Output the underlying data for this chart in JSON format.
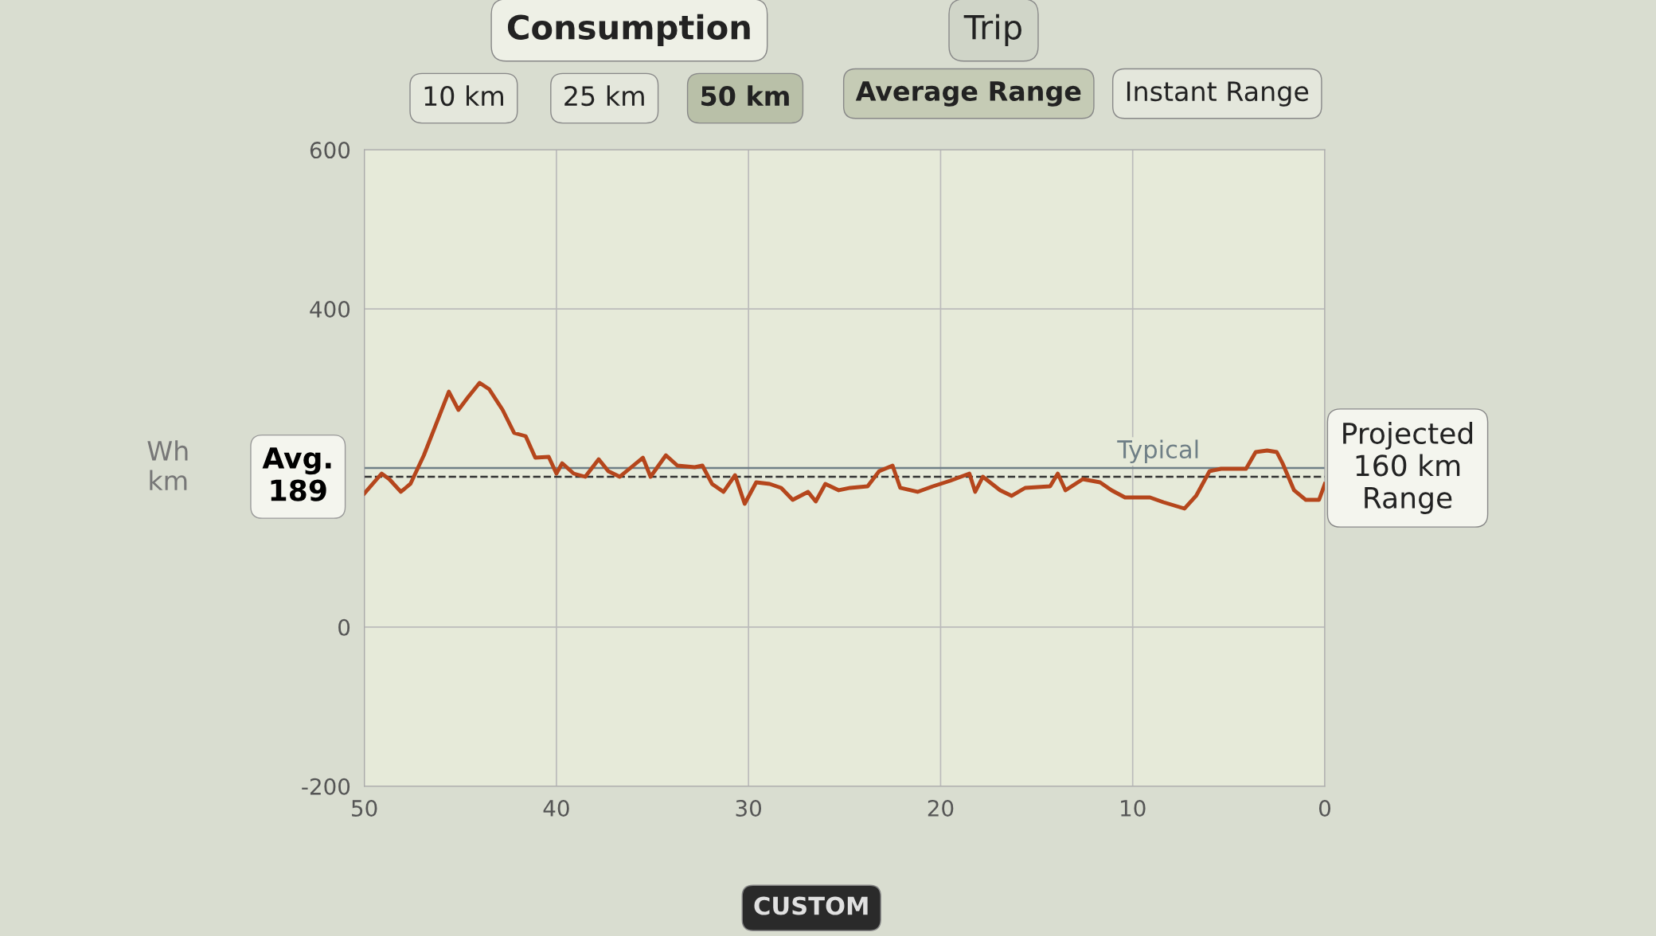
{
  "chart_data": {
    "type": "line",
    "ylabel": "Wh\nkm",
    "x": [
      50,
      49.1,
      48.7,
      48.1,
      47.6,
      46.9,
      46.3,
      45.6,
      45.1,
      44.6,
      44.0,
      43.5,
      42.8,
      42.2,
      41.6,
      41.1,
      40.4,
      40.0,
      39.7,
      39.1,
      38.5,
      37.8,
      37.3,
      36.7,
      36.1,
      35.5,
      35.1,
      34.3,
      33.7,
      32.8,
      32.4,
      31.9,
      31.3,
      30.7,
      30.2,
      29.6,
      28.9,
      28.3,
      27.7,
      26.9,
      26.5,
      26.0,
      25.3,
      24.7,
      23.8,
      23.2,
      22.5,
      22.1,
      21.2,
      20.4,
      19.5,
      18.5,
      18.2,
      17.8,
      16.9,
      16.3,
      15.6,
      14.3,
      13.9,
      13.5,
      12.6,
      11.7,
      11.1,
      10.4,
      9.1,
      8.4,
      7.3,
      6.7,
      6.0,
      5.4,
      4.1,
      3.6,
      3.0,
      2.5,
      2.2,
      1.6,
      1.0,
      0.3,
      0
    ],
    "series": [
      {
        "color": "#b5461c",
        "values": [
          168,
          193,
          186,
          170,
          180,
          216,
          253,
          296,
          273,
          289,
          307,
          299,
          273,
          244,
          240,
          213,
          214,
          193,
          206,
          193,
          189,
          211,
          196,
          189,
          201,
          213,
          189,
          216,
          203,
          201,
          203,
          180,
          170,
          191,
          155,
          182,
          180,
          175,
          160,
          170,
          158,
          180,
          172,
          175,
          177,
          196,
          203,
          175,
          170,
          177,
          184,
          193,
          170,
          189,
          172,
          165,
          175,
          177,
          193,
          172,
          186,
          182,
          172,
          163,
          163,
          157,
          149,
          165,
          196,
          199,
          199,
          220,
          222,
          220,
          206,
          172,
          160,
          160,
          180
        ]
      }
    ],
    "xlim": [
      50,
      0
    ],
    "xticks": [
      50,
      40,
      30,
      20,
      10,
      0
    ],
    "ylim": [
      -200,
      600
    ],
    "yticks": [
      -200,
      0,
      400,
      600
    ],
    "grid": true,
    "marker": "none",
    "line_style": "solid",
    "ref_lines": [
      {
        "axis": "y",
        "value": 200,
        "label": "Typical",
        "color": "#6f7f86",
        "line_style": "solid"
      },
      {
        "axis": "y",
        "value": 189,
        "label": "Avg.\n189",
        "color": "#333333",
        "line_style": "dashed"
      }
    ],
    "annotations": [
      "Consumption",
      "Trip",
      "10 km",
      "25 km",
      "50 km",
      "Average Range",
      "Instant Range",
      "Projected\n160 km\nRange",
      "CUSTOM"
    ]
  }
}
